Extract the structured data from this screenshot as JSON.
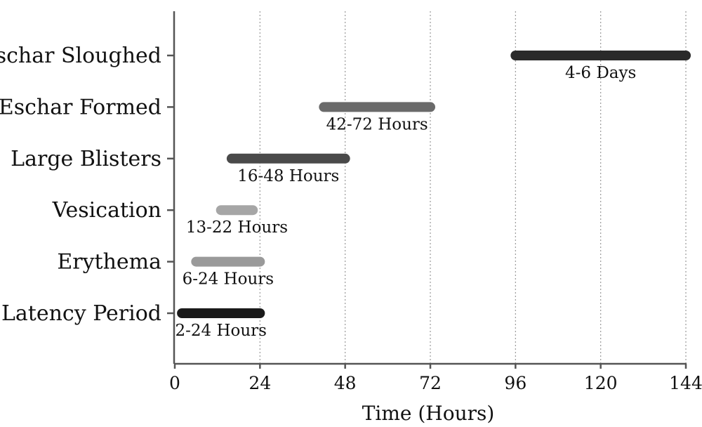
{
  "chart_data": {
    "type": "bar",
    "orientation": "horizontal-range",
    "categories": [
      "Latency Period",
      "Erythema",
      "Vesication",
      "Large Blisters",
      "Eschar Formed",
      "Eschar Sloughed"
    ],
    "ranges": [
      {
        "category": "Latency Period",
        "start": 2,
        "end": 24,
        "label": "2-24 Hours",
        "color": "#1a1a1a"
      },
      {
        "category": "Erythema",
        "start": 6,
        "end": 24,
        "label": "6-24 Hours",
        "color": "#9a9a9a"
      },
      {
        "category": "Vesication",
        "start": 13,
        "end": 22,
        "label": "13-22 Hours",
        "color": "#a6a6a6"
      },
      {
        "category": "Large Blisters",
        "start": 16,
        "end": 48,
        "label": "16-48 Hours",
        "color": "#4a4a4a"
      },
      {
        "category": "Eschar Formed",
        "start": 42,
        "end": 72,
        "label": "42-72 Hours",
        "color": "#6a6a6a"
      },
      {
        "category": "Eschar Sloughed",
        "start": 96,
        "end": 144,
        "label": "4-6 Days",
        "color": "#2a2a2a"
      }
    ],
    "xlabel": "Time (Hours)",
    "xticks": [
      0,
      24,
      48,
      72,
      96,
      120,
      144
    ],
    "xlim": [
      0,
      144
    ],
    "grid": "vertical dotted"
  }
}
